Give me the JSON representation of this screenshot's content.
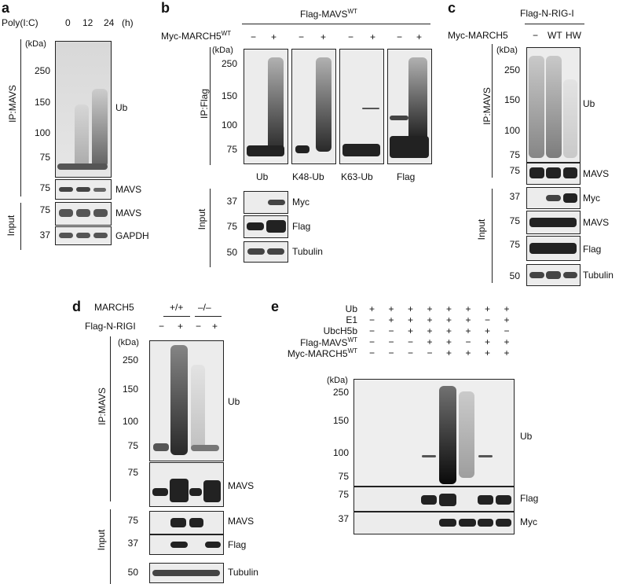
{
  "panels": {
    "a": {
      "letter": "a",
      "treatment_label": "Poly(I:C)",
      "timepoints": [
        "0",
        "12",
        "24"
      ],
      "unit": "(h)",
      "kda": "(kDa)",
      "ip_label": "IP:MAVS",
      "input_label": "Input",
      "markers_ub": [
        "250",
        "150",
        "100",
        "75"
      ],
      "marker_mavs": "75",
      "marker_input_mavs": "75",
      "marker_gapdh": "37",
      "blots": [
        "Ub",
        "MAVS",
        "MAVS",
        "GAPDH"
      ]
    },
    "b": {
      "letter": "b",
      "top_label": "Flag-MAVS",
      "top_sup": "WT",
      "myc_label": "Myc-MARCH5",
      "myc_sup": "WT",
      "signs": [
        "−",
        "+",
        "−",
        "+",
        "−",
        "+",
        "−",
        "+"
      ],
      "kda": "(kDa)",
      "ip_label": "IP:Flag",
      "input_label": "Input",
      "markers": [
        "250",
        "150",
        "100",
        "75"
      ],
      "lane_labels": [
        "Ub",
        "K48-Ub",
        "K63-Ub",
        "Flag"
      ],
      "input_markers": [
        "37",
        "75",
        "50"
      ],
      "input_blots": [
        "Myc",
        "Flag",
        "Tubulin"
      ]
    },
    "c": {
      "letter": "c",
      "top_label": "Flag-N-RIG-I",
      "myc_label": "Myc-MARCH5",
      "lanes": [
        "−",
        "WT",
        "HW"
      ],
      "kda": "(kDa)",
      "ip_label": "IP:MAVS",
      "input_label": "Input",
      "markers_ub": [
        "250",
        "150",
        "100",
        "75"
      ],
      "marker_mavs": "75",
      "input_markers": [
        "37",
        "75",
        "75",
        "50"
      ],
      "blots": [
        "Ub",
        "MAVS",
        "Myc",
        "MAVS",
        "Flag",
        "Tubulin"
      ]
    },
    "d": {
      "letter": "d",
      "march_label": "MARCH5",
      "genotypes": [
        "+/+",
        "–/–"
      ],
      "flag_label": "Flag-N-RIGI",
      "signs": [
        "−",
        "+",
        "−",
        "+"
      ],
      "kda": "(kDa)",
      "ip_label": "IP:MAVS",
      "input_label": "Input",
      "markers_ub": [
        "250",
        "150",
        "100",
        "75"
      ],
      "marker_mavs": "75",
      "input_markers": [
        "75",
        "37",
        "50"
      ],
      "blots": [
        "Ub",
        "MAVS",
        "MAVS",
        "Flag",
        "Tubulin"
      ]
    },
    "e": {
      "letter": "e",
      "rows": [
        {
          "label": "Ub",
          "signs": [
            "+",
            "+",
            "+",
            "+",
            "+",
            "+",
            "+",
            "+"
          ]
        },
        {
          "label": "E1",
          "signs": [
            "−",
            "+",
            "+",
            "+",
            "+",
            "+",
            "−",
            "+"
          ]
        },
        {
          "label": "UbcH5b",
          "signs": [
            "−",
            "−",
            "+",
            "+",
            "+",
            "+",
            "+",
            "−"
          ]
        },
        {
          "label": "Flag-MAVS",
          "sup": "WT",
          "signs": [
            "−",
            "−",
            "−",
            "+",
            "+",
            "−",
            "+",
            "+"
          ]
        },
        {
          "label": "Myc-MARCH5",
          "sup": "WT",
          "signs": [
            "−",
            "−",
            "−",
            "−",
            "+",
            "+",
            "+",
            "+"
          ]
        }
      ],
      "kda": "(kDa)",
      "markers_ub": [
        "250",
        "150",
        "100",
        "75"
      ],
      "marker_flag": "75",
      "marker_myc": "37",
      "blots": [
        "Ub",
        "Flag",
        "Myc"
      ]
    }
  }
}
